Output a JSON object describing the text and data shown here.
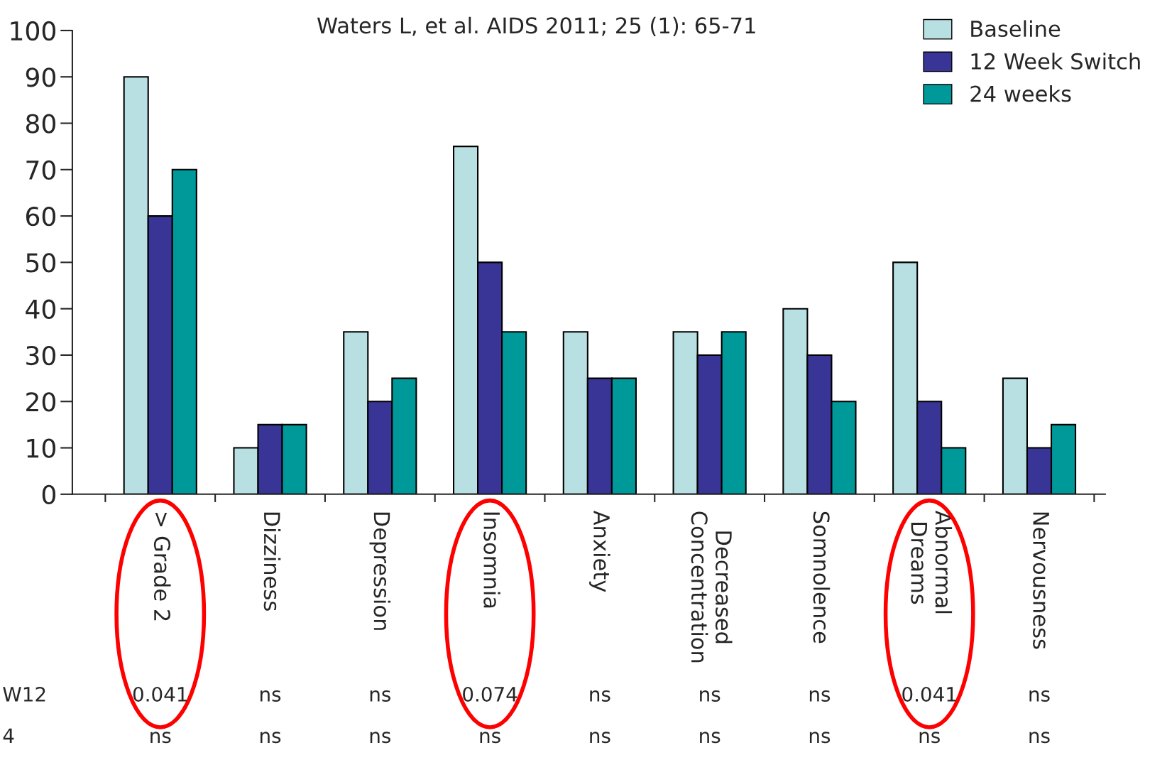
{
  "chart_data": {
    "type": "bar",
    "title": "Waters L, et al. AIDS 2011; 25 (1): 65-71",
    "categories": [
      "> Grade 2",
      "Dizziness",
      "Depression",
      "Insomnia",
      "Anxiety",
      "Decreased\nConcentration",
      "Somnolence",
      "Abnormal\nDreams",
      "Nervousness"
    ],
    "series": [
      {
        "name": "Baseline",
        "color": "#b8e0e2",
        "values": [
          90,
          10,
          35,
          75,
          35,
          35,
          40,
          50,
          25
        ]
      },
      {
        "name": "12 Week Switch",
        "color": "#383596",
        "values": [
          60,
          15,
          20,
          50,
          25,
          30,
          30,
          20,
          10
        ]
      },
      {
        "name": "24 weeks",
        "color": "#009999",
        "values": [
          70,
          15,
          25,
          35,
          25,
          35,
          20,
          10,
          15
        ]
      }
    ],
    "ylim": [
      0,
      100
    ],
    "yticks": [
      0,
      10,
      20,
      30,
      40,
      50,
      60,
      70,
      80,
      90,
      100
    ],
    "grid": false,
    "legend": "top right",
    "annotations": [
      "W12",
      "0.041",
      "ns",
      "ns",
      "0.074",
      "ns",
      "ns",
      "ns",
      "0.041",
      "ns",
      "4",
      "ns",
      "ns",
      "ns",
      "ns",
      "ns",
      "ns",
      "ns",
      "ns",
      "ns"
    ]
  }
}
